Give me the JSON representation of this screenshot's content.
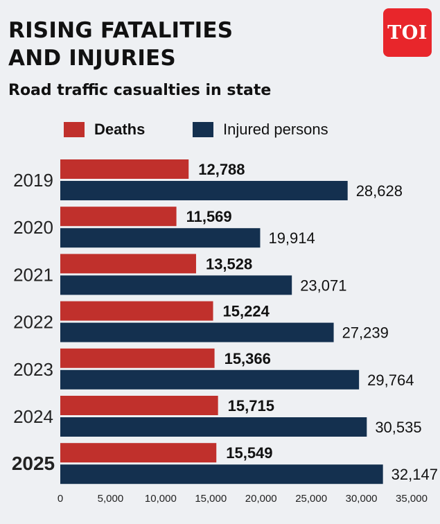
{
  "header": {
    "title_line1": "RISING FATALITIES",
    "title_line2": "AND INJURIES",
    "subtitle": "Road traffic casualties in state",
    "logo_text": "TOI"
  },
  "colors": {
    "deaths": "#c0302c",
    "injured": "#14304f",
    "logo": "#e8262b",
    "background": "#eef0f3"
  },
  "chart_data": {
    "type": "bar",
    "orientation": "horizontal",
    "categories": [
      "2019",
      "2020",
      "2021",
      "2022",
      "2023",
      "2024",
      "2025"
    ],
    "series": [
      {
        "name": "Deaths",
        "values": [
          12788,
          11569,
          13528,
          15224,
          15366,
          15715,
          15549
        ],
        "labels": [
          "12,788",
          "11,569",
          "13,528",
          "15,224",
          "15,366",
          "15,715",
          "15,549"
        ]
      },
      {
        "name": "Injured persons",
        "values": [
          28628,
          19914,
          23071,
          27239,
          29764,
          30535,
          32147
        ],
        "labels": [
          "28,628",
          "19,914",
          "23,071",
          "27,239",
          "29,764",
          "30,535",
          "32,147"
        ]
      }
    ],
    "xlim": [
      0,
      35000
    ],
    "x_ticks": [
      0,
      5000,
      10000,
      15000,
      20000,
      25000,
      30000,
      35000
    ],
    "x_tick_labels": [
      "0",
      "5,000",
      "10,000",
      "15,000",
      "20,000",
      "25,000",
      "30,000",
      "35,000"
    ],
    "highlighted_category": "2025",
    "legend_position": "top",
    "grid": false
  }
}
